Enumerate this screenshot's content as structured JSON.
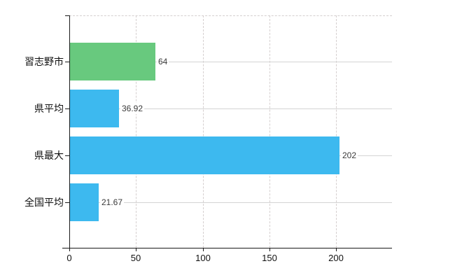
{
  "chart_data": {
    "type": "bar",
    "orientation": "horizontal",
    "title": "",
    "categories": [
      "習志野市",
      "県平均",
      "県最大",
      "全国平均"
    ],
    "values": [
      64,
      36.92,
      202,
      21.67
    ],
    "value_labels": [
      "64",
      "36.92",
      "202",
      "21.67"
    ],
    "bar_colors": [
      "#68c97e",
      "#3db9ef",
      "#3db9ef",
      "#3db9ef"
    ],
    "x_ticks": [
      0,
      50,
      100,
      150,
      200
    ],
    "x_tick_labels": [
      "0",
      "50",
      "100",
      "150",
      "200"
    ],
    "xlim": [
      0,
      242
    ],
    "grid": true,
    "legend": false,
    "colors": {
      "bar_highlight": "#68c97e",
      "bar_default": "#3db9ef",
      "axis": "#1a1a1a",
      "gridline_solid": "#d4d4d4",
      "gridline_dashed": "#d5cfcf",
      "background": "#ffffff",
      "label_text": "#111111",
      "value_text": "#3a3a3a"
    }
  }
}
